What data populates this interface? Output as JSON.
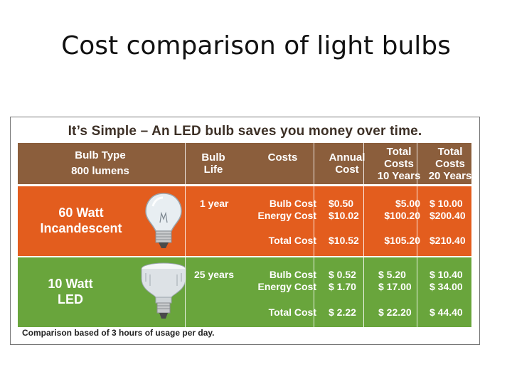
{
  "slide": {
    "title": "Cost comparison of light bulbs"
  },
  "table": {
    "headline": "It’s Simple – An LED bulb saves you money over time.",
    "headers": {
      "bulb_type": [
        "Bulb Type",
        "800 lumens"
      ],
      "bulb_life": [
        "Bulb",
        "Life"
      ],
      "costs": "Costs",
      "annual_cost": [
        "Annual",
        "Cost"
      ],
      "total_10": [
        "Total",
        "Costs",
        "10 Years"
      ],
      "total_20": [
        "Total",
        "Costs",
        "20 Years"
      ]
    },
    "rows": [
      {
        "name": [
          "60 Watt",
          "Incandescent"
        ],
        "life": "1 year",
        "cost_labels": [
          "Bulb Cost",
          "Energy Cost"
        ],
        "total_label": "Total Cost",
        "annual": [
          "$0.50",
          "$10.02"
        ],
        "annual_total": "$10.52",
        "ten_year": [
          "$5.00",
          "$100.20"
        ],
        "ten_year_total": "$105.20",
        "twenty_year": [
          "$ 10.00",
          "$200.40"
        ],
        "twenty_year_total": "$210.40"
      },
      {
        "name": [
          "10 Watt",
          "LED"
        ],
        "life": "25 years",
        "cost_labels": [
          "Bulb Cost",
          "Energy Cost"
        ],
        "total_label": "Total Cost",
        "annual": [
          "$ 0.52",
          "$ 1.70"
        ],
        "annual_total": "$ 2.22",
        "ten_year": [
          "$ 5.20",
          "$ 17.00"
        ],
        "ten_year_total": "$ 22.20",
        "twenty_year": [
          "$ 10.40",
          "$ 34.00"
        ],
        "twenty_year_total": "$ 44.40"
      }
    ],
    "footnote": "Comparison based of 3 hours of usage per day.",
    "colors": {
      "header": "#8b5e3c",
      "incandescent": "#e35d1e",
      "led": "#69a53c"
    },
    "icons": [
      "incandescent-bulb-icon",
      "led-bulb-icon"
    ]
  }
}
